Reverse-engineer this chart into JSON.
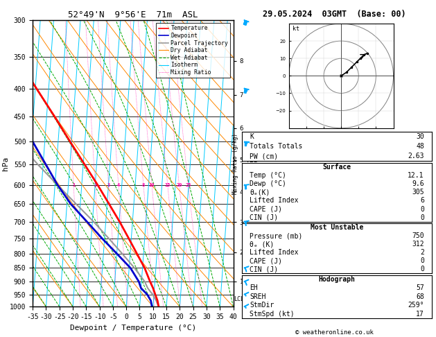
{
  "title_left": "52°49'N  9°56'E  71m  ASL",
  "title_right": "29.05.2024  03GMT  (Base: 00)",
  "xlabel": "Dewpoint / Temperature (°C)",
  "ylabel_left": "hPa",
  "temp_color": "#ff0000",
  "dewp_color": "#0000cd",
  "parcel_color": "#999999",
  "dry_adiabat_color": "#ff8800",
  "wet_adiabat_color": "#00aa00",
  "isotherm_color": "#00ccff",
  "mixing_ratio_color": "#ff00aa",
  "xlim": [
    -35,
    40
  ],
  "P_min": 300,
  "P_max": 1000,
  "skew_factor": 15,
  "temperature_profile": {
    "pressure": [
      1000,
      975,
      950,
      925,
      900,
      850,
      800,
      750,
      700,
      650,
      600,
      550,
      500,
      450,
      400,
      350,
      300
    ],
    "temp": [
      12.1,
      11.5,
      10.5,
      9.5,
      8.2,
      5.8,
      2.5,
      -1.0,
      -4.8,
      -9.2,
      -14.0,
      -19.5,
      -25.5,
      -32.0,
      -39.5,
      -48.0,
      -57.5
    ]
  },
  "dewpoint_profile": {
    "pressure": [
      1000,
      975,
      950,
      925,
      900,
      850,
      800,
      750,
      700,
      650,
      600,
      550,
      500,
      450,
      400,
      350,
      300
    ],
    "temp": [
      9.6,
      9.0,
      7.5,
      5.0,
      4.0,
      0.5,
      -5.0,
      -11.0,
      -17.0,
      -23.5,
      -29.0,
      -34.0,
      -39.5,
      -46.0,
      -52.5,
      -58.0,
      -63.5
    ]
  },
  "parcel_profile": {
    "pressure": [
      1000,
      975,
      950,
      925,
      900,
      850,
      800,
      750,
      700,
      650,
      600,
      550,
      500,
      450,
      400,
      350,
      300
    ],
    "temp": [
      12.1,
      11.0,
      9.5,
      7.5,
      6.2,
      2.0,
      -3.0,
      -8.5,
      -14.5,
      -21.5,
      -29.0,
      -37.0,
      -45.0,
      -52.5,
      -59.0,
      -65.0,
      -70.0
    ]
  },
  "lcl_pressure": 968,
  "km_ticks": [
    1,
    2,
    3,
    4,
    5,
    6,
    7,
    8
  ],
  "mixing_ratio_values": [
    1,
    2,
    3,
    4,
    8,
    10,
    15,
    20,
    25
  ],
  "wind_barbs": {
    "pressures": [
      1000,
      950,
      900,
      850,
      700,
      600,
      500,
      400,
      300
    ],
    "speed_kt": [
      5,
      8,
      10,
      12,
      18,
      22,
      28,
      35,
      40
    ],
    "direction": [
      248,
      250,
      252,
      255,
      260,
      265,
      270,
      278,
      285
    ]
  },
  "hodo_points": [
    [
      0,
      0
    ],
    [
      3,
      2
    ],
    [
      6,
      5
    ],
    [
      9,
      8
    ],
    [
      11,
      10
    ],
    [
      13,
      12
    ],
    [
      15,
      13
    ]
  ],
  "stats": {
    "K": 30,
    "Totals Totals": 48,
    "PW_cm": 2.63,
    "surf_temp": 12.1,
    "surf_dewp": 9.6,
    "surf_thetae": 305,
    "surf_li": 6,
    "surf_cape": 0,
    "surf_cin": 0,
    "mu_pressure": 750,
    "mu_thetae": 312,
    "mu_li": 2,
    "mu_cape": 0,
    "mu_cin": 0,
    "hodo_EH": 57,
    "hodo_SREH": 68,
    "hodo_stmdir": "259°",
    "hodo_stmspd": 17
  }
}
